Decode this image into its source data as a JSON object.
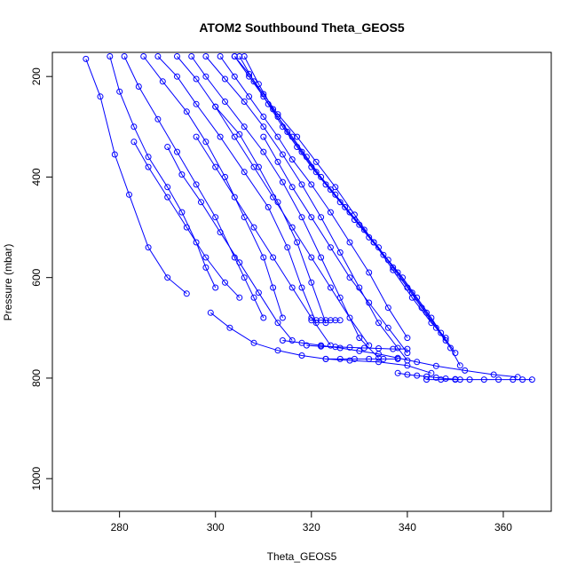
{
  "chart_data": {
    "type": "scatter",
    "title": "ATOM2 Southbound Theta_GEOS5",
    "xlabel": "Theta_GEOS5",
    "ylabel": "Pressure (mbar)",
    "xlim": [
      266,
      370
    ],
    "ylim": [
      1065,
      152
    ],
    "y_reversed": true,
    "x_ticks": [
      280,
      300,
      320,
      340,
      360
    ],
    "y_ticks": [
      200,
      400,
      600,
      800,
      1000
    ],
    "grid": false,
    "legend": "none",
    "series_color": "#0000ff",
    "marker": "open-circle",
    "line_style": "solid",
    "series": [
      {
        "x": [
          273,
          276,
          279,
          282,
          286,
          290,
          294
        ],
        "y": [
          165,
          240,
          355,
          435,
          540,
          600,
          632
        ]
      },
      {
        "x": [
          278,
          280,
          283,
          286,
          290,
          293,
          296,
          298,
          300
        ],
        "y": [
          160,
          230,
          300,
          360,
          420,
          470,
          530,
          580,
          620
        ]
      },
      {
        "x": [
          281,
          284,
          288,
          292,
          296,
          300,
          304,
          306,
          308,
          310
        ],
        "y": [
          160,
          220,
          285,
          350,
          415,
          480,
          560,
          600,
          640,
          680
        ]
      },
      {
        "x": [
          285,
          289,
          294,
          298,
          302,
          306,
          310,
          312,
          314
        ],
        "y": [
          160,
          210,
          270,
          330,
          400,
          480,
          560,
          620,
          680
        ]
      },
      {
        "x": [
          288,
          292,
          296,
          301,
          306,
          311,
          315,
          318,
          321
        ],
        "y": [
          160,
          200,
          255,
          320,
          390,
          460,
          540,
          620,
          690
        ]
      },
      {
        "x": [
          292,
          296,
          300,
          305,
          309,
          313,
          317,
          320,
          323
        ],
        "y": [
          160,
          205,
          260,
          315,
          380,
          450,
          530,
          610,
          690
        ]
      },
      {
        "x": [
          295,
          298,
          302,
          306,
          310,
          314,
          318,
          322,
          326,
          330,
          334
        ],
        "y": [
          160,
          200,
          250,
          300,
          350,
          410,
          480,
          560,
          640,
          720,
          760
        ]
      },
      {
        "x": [
          298,
          302,
          306,
          310,
          314,
          318,
          322,
          326,
          330,
          334,
          338,
          340
        ],
        "y": [
          160,
          205,
          250,
          300,
          355,
          415,
          480,
          550,
          620,
          690,
          740,
          765
        ]
      },
      {
        "x": [
          301,
          304,
          307,
          310,
          313,
          316,
          320,
          324,
          328,
          332,
          336,
          340
        ],
        "y": [
          160,
          200,
          240,
          280,
          320,
          365,
          415,
          470,
          530,
          590,
          660,
          720
        ]
      },
      {
        "x": [
          304,
          307,
          310,
          313,
          317,
          321,
          325,
          329,
          333,
          337,
          341,
          345,
          348
        ],
        "y": [
          160,
          195,
          235,
          275,
          320,
          370,
          420,
          475,
          530,
          585,
          640,
          690,
          720
        ]
      },
      {
        "x": [
          304,
          307,
          310,
          313,
          316,
          319,
          322,
          325,
          328,
          331,
          334,
          337,
          340,
          343,
          346,
          349,
          351
        ],
        "y": [
          160,
          200,
          240,
          280,
          320,
          360,
          400,
          435,
          470,
          505,
          540,
          580,
          620,
          660,
          700,
          740,
          775
        ]
      },
      {
        "x": [
          305,
          308,
          311,
          314,
          317,
          320,
          323,
          326,
          329,
          332,
          335,
          338,
          341,
          344,
          347,
          350
        ],
        "y": [
          160,
          210,
          255,
          300,
          340,
          380,
          415,
          450,
          485,
          520,
          555,
          590,
          630,
          670,
          710,
          750
        ]
      },
      {
        "x": [
          306,
          309,
          312,
          315,
          318,
          321,
          324,
          327,
          330,
          333,
          336,
          339,
          342,
          345,
          348
        ],
        "y": [
          160,
          215,
          265,
          310,
          350,
          390,
          425,
          460,
          495,
          530,
          565,
          600,
          640,
          680,
          725
        ]
      },
      {
        "x": [
          283,
          286,
          290,
          294,
          298,
          302,
          305
        ],
        "y": [
          330,
          380,
          440,
          500,
          560,
          610,
          640
        ]
      },
      {
        "x": [
          290,
          293,
          297,
          301,
          305,
          309,
          313,
          316
        ],
        "y": [
          340,
          395,
          450,
          510,
          570,
          630,
          690,
          725
        ]
      },
      {
        "x": [
          296,
          300,
          304,
          308,
          312,
          316,
          320,
          324
        ],
        "y": [
          320,
          380,
          440,
          500,
          560,
          620,
          680,
          735
        ]
      },
      {
        "x": [
          300,
          304,
          308,
          312,
          316,
          320,
          324,
          328,
          332
        ],
        "y": [
          260,
          320,
          380,
          440,
          500,
          560,
          620,
          680,
          735
        ]
      },
      {
        "x": [
          310,
          313,
          316,
          320,
          324,
          328,
          332,
          336,
          340
        ],
        "y": [
          320,
          370,
          420,
          480,
          540,
          600,
          650,
          700,
          750
        ]
      },
      {
        "x": [
          299,
          303,
          308,
          313,
          318,
          323,
          328,
          334,
          340,
          345
        ],
        "y": [
          670,
          700,
          730,
          745,
          755,
          762,
          765,
          768,
          775,
          790
        ]
      },
      {
        "x": [
          319,
          322,
          325,
          328,
          331,
          334,
          337,
          340
        ],
        "y": [
          735,
          737,
          738,
          739,
          740,
          741,
          742,
          742
        ]
      },
      {
        "x": [
          320,
          321,
          322,
          323,
          324,
          325,
          326
        ],
        "y": [
          685,
          685,
          685,
          685,
          685,
          685,
          685
        ]
      },
      {
        "x": [
          323,
          326,
          329,
          332,
          335,
          338
        ],
        "y": [
          762,
          762,
          762,
          762,
          762,
          762
        ]
      },
      {
        "x": [
          344,
          347,
          350,
          353,
          356,
          359,
          362,
          364,
          366
        ],
        "y": [
          803,
          803,
          803,
          803,
          803,
          803,
          803,
          803,
          803
        ]
      },
      {
        "x": [
          314,
          318,
          322,
          326,
          330,
          334,
          338,
          342,
          346,
          352,
          358,
          363
        ],
        "y": [
          725,
          730,
          735,
          740,
          746,
          752,
          760,
          768,
          776,
          785,
          793,
          798
        ]
      },
      {
        "x": [
          338,
          340,
          342,
          344,
          346,
          348,
          350,
          351
        ],
        "y": [
          790,
          793,
          795,
          797,
          799,
          801,
          802,
          803
        ]
      }
    ]
  }
}
